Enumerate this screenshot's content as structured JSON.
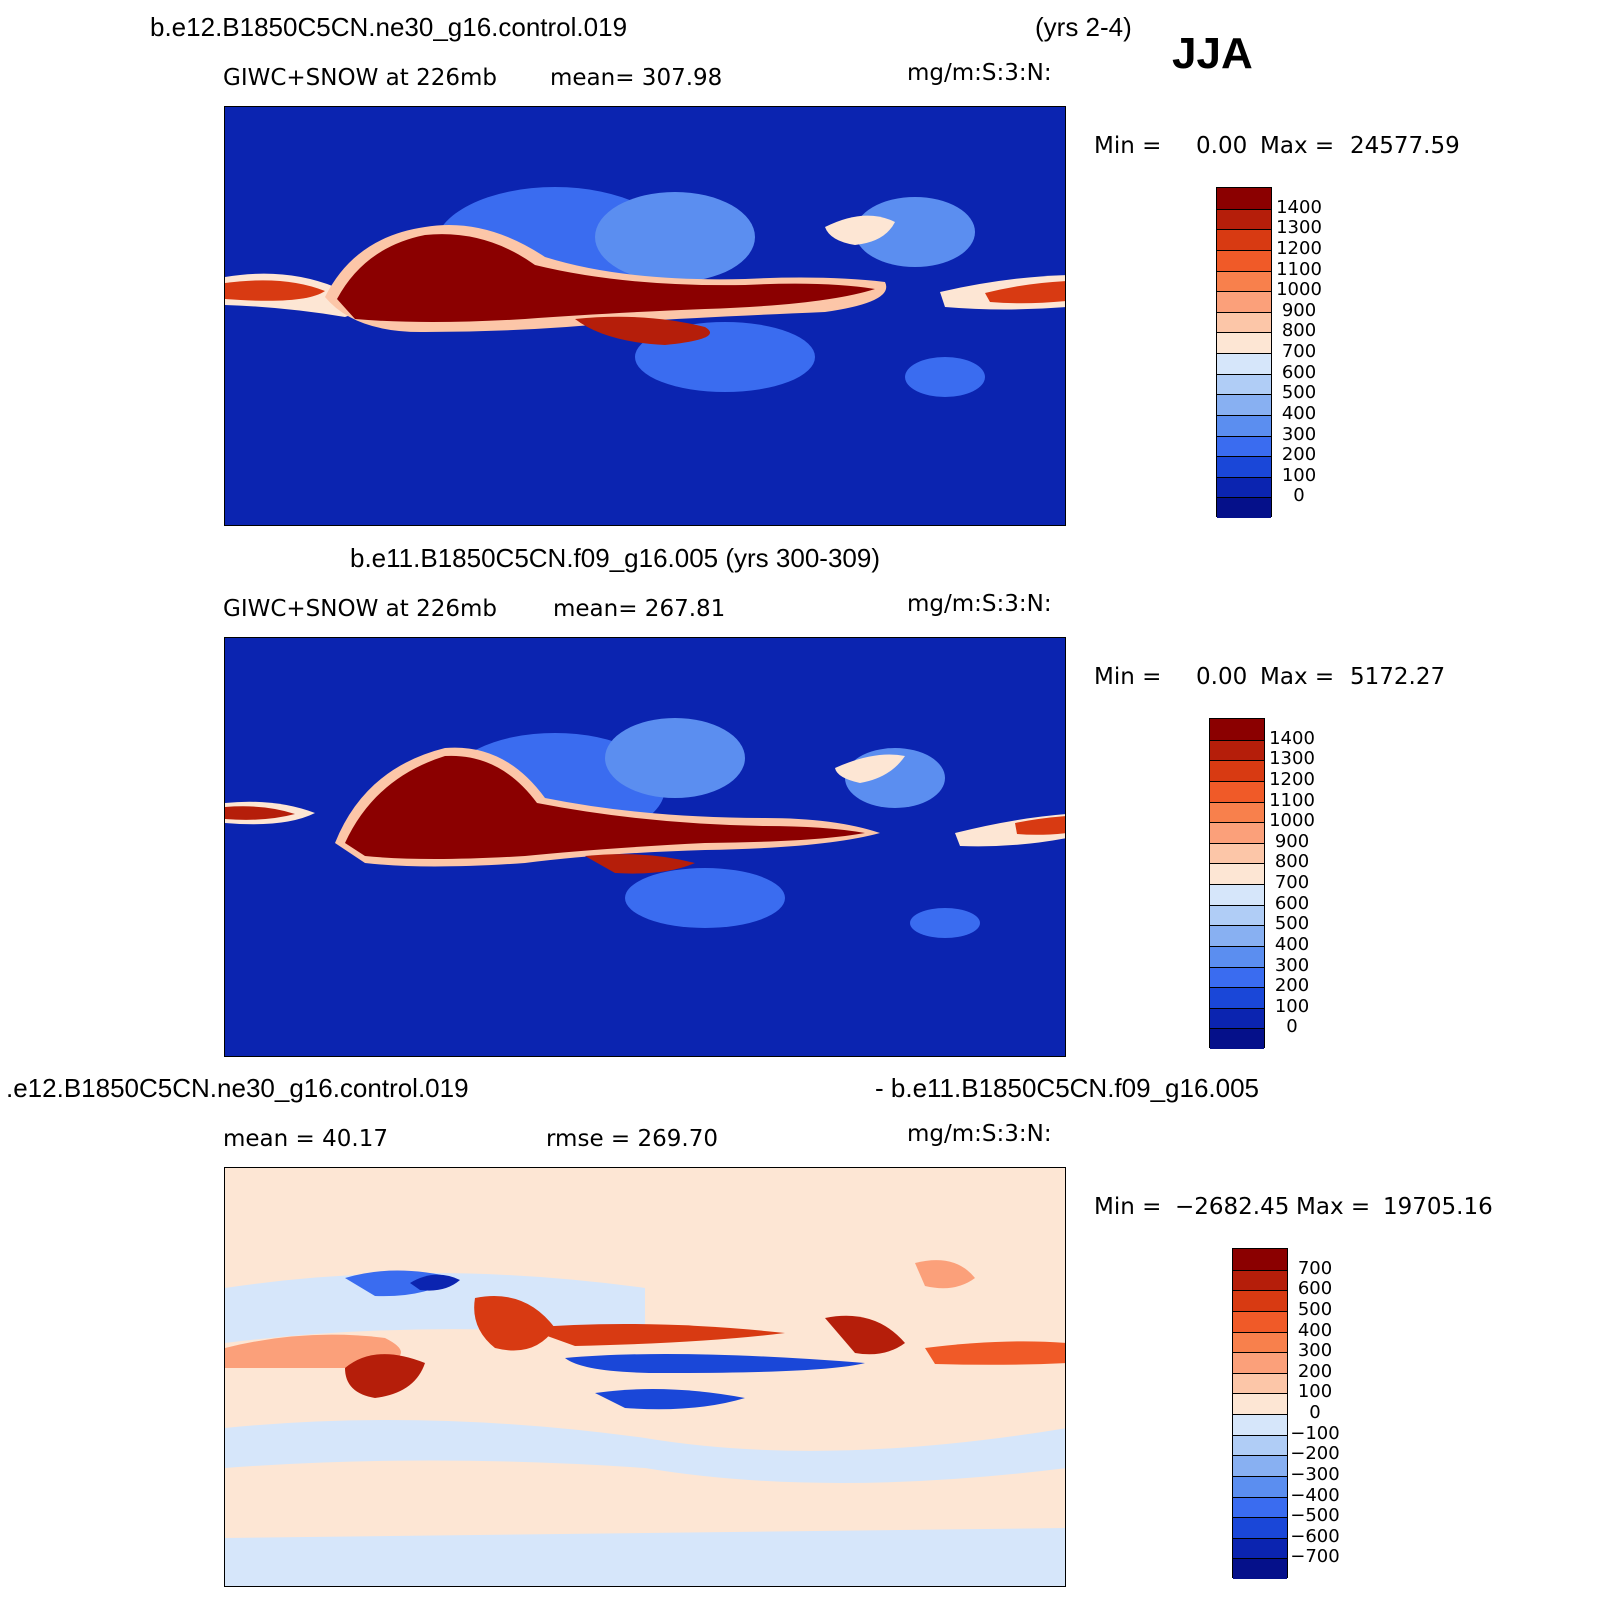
{
  "season": "JJA",
  "panels": [
    {
      "id": "top",
      "title_left": "b.e12.B1850C5CN.ne30_g16.control.019",
      "title_right": "(yrs 2-4)",
      "variable": "GIWC+SNOW at 226mb",
      "mean_label": "mean= 307.98",
      "units": "mg/m:S:3:N:",
      "minmax": {
        "min_label": "Min =",
        "min": "0.00",
        "max_label": "Max =",
        "max": "24577.59"
      },
      "colorbar": {
        "labels": [
          "1400",
          "1300",
          "1200",
          "1100",
          "1000",
          "900",
          "800",
          "700",
          "600",
          "500",
          "400",
          "300",
          "200",
          "100",
          "0"
        ],
        "colors": [
          "#8b0000",
          "#b51e0a",
          "#d83a12",
          "#f05a28",
          "#f8804c",
          "#fba07a",
          "#fcc6a8",
          "#fde6d4",
          "#d6e6fa",
          "#b0cdf6",
          "#88b0f2",
          "#5b8ef0",
          "#3a6cf0",
          "#1a47d8",
          "#0b24b0",
          "#05108a"
        ]
      }
    },
    {
      "id": "middle",
      "title_left": "b.e11.B1850C5CN.f09_g16.005 (yrs 300-309)",
      "variable": "GIWC+SNOW at 226mb",
      "mean_label": "mean= 267.81",
      "units": "mg/m:S:3:N:",
      "minmax": {
        "min_label": "Min =",
        "min": "0.00",
        "max_label": "Max =",
        "max": "5172.27"
      },
      "colorbar": {
        "labels": [
          "1400",
          "1300",
          "1200",
          "1100",
          "1000",
          "900",
          "800",
          "700",
          "600",
          "500",
          "400",
          "300",
          "200",
          "100",
          "0"
        ],
        "colors": [
          "#8b0000",
          "#b51e0a",
          "#d83a12",
          "#f05a28",
          "#f8804c",
          "#fba07a",
          "#fcc6a8",
          "#fde6d4",
          "#d6e6fa",
          "#b0cdf6",
          "#88b0f2",
          "#5b8ef0",
          "#3a6cf0",
          "#1a47d8",
          "#0b24b0",
          "#05108a"
        ]
      }
    },
    {
      "id": "bottom",
      "title_left": ".e12.B1850C5CN.ne30_g16.control.019",
      "title_right": "- b.e11.B1850C5CN.f09_g16.005",
      "mean_label": "mean =   40.17",
      "rmse_label": "rmse = 269.70",
      "units": "mg/m:S:3:N:",
      "minmax": {
        "min_label": "Min =",
        "min": "−2682.45",
        "max_label": "Max =",
        "max": "19705.16"
      },
      "colorbar": {
        "labels": [
          "700",
          "600",
          "500",
          "400",
          "300",
          "200",
          "100",
          "0",
          "−100",
          "−200",
          "−300",
          "−400",
          "−500",
          "−600",
          "−700"
        ],
        "colors": [
          "#8b0000",
          "#b51e0a",
          "#d83a12",
          "#f05a28",
          "#f8804c",
          "#fba07a",
          "#fcc6a8",
          "#fde6d4",
          "#d6e6fa",
          "#b0cdf6",
          "#88b0f2",
          "#5b8ef0",
          "#3a6cf0",
          "#1a47d8",
          "#0b24b0",
          "#05108a"
        ]
      }
    }
  ],
  "map_colors": {
    "ocean_low": "#0b24b0",
    "diff_pos": "#fde6d4",
    "diff_neg": "#d6e6fa",
    "coast": "#000000"
  }
}
